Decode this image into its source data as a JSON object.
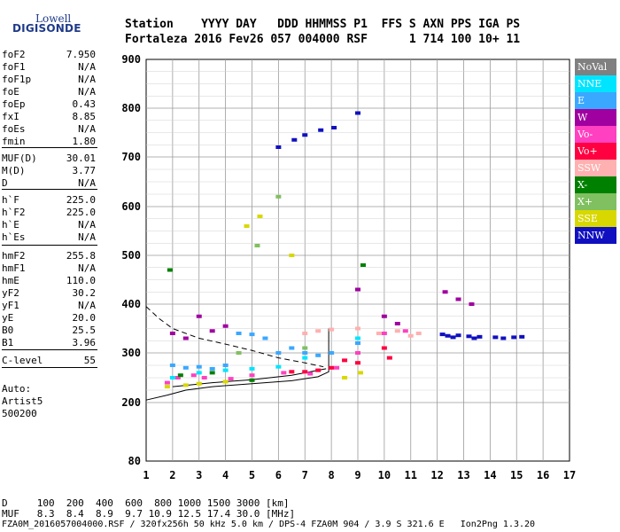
{
  "logo": {
    "line1": "Lowell",
    "line2": "DIGISONDE"
  },
  "header": {
    "line1": "Station    YYYY DAY   DDD HHMMSS P1  FFS S AXN PPS IGA PS",
    "line2": "Fortaleza 2016 Fev26 057 004000 RSF      1 714 100 10+ 11"
  },
  "params": [
    {
      "k": "foF2",
      "v": "7.950"
    },
    {
      "k": "foF1",
      "v": "N/A"
    },
    {
      "k": "foF1p",
      "v": "N/A"
    },
    {
      "k": "foE",
      "v": "N/A"
    },
    {
      "k": "foEp",
      "v": "0.43"
    },
    {
      "k": "fxI",
      "v": "8.85"
    },
    {
      "k": "foEs",
      "v": "N/A"
    },
    {
      "k": "fmin",
      "v": "1.80"
    },
    {
      "k": "MUF(D)",
      "v": "30.01"
    },
    {
      "k": "M(D)",
      "v": "3.77"
    },
    {
      "k": "D",
      "v": "N/A"
    },
    {
      "k": "h`F",
      "v": "225.0"
    },
    {
      "k": "h`F2",
      "v": "225.0"
    },
    {
      "k": "h`E",
      "v": "N/A"
    },
    {
      "k": "h`Es",
      "v": "N/A"
    },
    {
      "k": "hmF2",
      "v": "255.8"
    },
    {
      "k": "hmF1",
      "v": "N/A"
    },
    {
      "k": "hmE",
      "v": "110.0"
    },
    {
      "k": "yF2",
      "v": "30.2"
    },
    {
      "k": "yF1",
      "v": "N/A"
    },
    {
      "k": "yE",
      "v": "20.0"
    },
    {
      "k": "B0",
      "v": "25.5"
    },
    {
      "k": "B1",
      "v": "3.96"
    },
    {
      "k": "C-level",
      "v": "55"
    }
  ],
  "auto": {
    "l1": "Auto:",
    "l2": "Artist5",
    "l3": "500200"
  },
  "legend": [
    {
      "label": "NoVal",
      "color": "#808080"
    },
    {
      "label": "NNE",
      "color": "#00e5ff"
    },
    {
      "label": "E",
      "color": "#3aa8ff"
    },
    {
      "label": "W",
      "color": "#a000a0"
    },
    {
      "label": "Vo-",
      "color": "#ff40c0"
    },
    {
      "label": "Vo+",
      "color": "#ff0040"
    },
    {
      "label": "SSW",
      "color": "#ffb0b0"
    },
    {
      "label": "X-",
      "color": "#008000"
    },
    {
      "label": "X+",
      "color": "#80c060"
    },
    {
      "label": "SSE",
      "color": "#d8d800"
    },
    {
      "label": "NNW",
      "color": "#1010c0"
    }
  ],
  "footer": {
    "d_line": "D     100  200  400  600  800 1000 1500 3000 [km]",
    "muf_line": "MUF   8.3  8.4  8.9  9.7 10.9 12.5 17.4 30.0 [MHz]",
    "file_line": "FZA0M_2016057004000.RSF / 320fx256h 50 kHz 5.0 km / DPS-4 FZA0M 904 / 3.9 S 321.6 E   Ion2Png 1.3.20"
  },
  "chart_data": {
    "type": "scatter",
    "title": "",
    "xlabel": "",
    "ylabel": "",
    "xlim": [
      1,
      17
    ],
    "ylim": [
      80,
      900
    ],
    "x_ticks": [
      1,
      2,
      3,
      4,
      5,
      6,
      7,
      8,
      9,
      10,
      11,
      12,
      13,
      14,
      15,
      16,
      17
    ],
    "y_ticks": [
      80,
      200,
      300,
      400,
      500,
      600,
      700,
      800,
      900
    ],
    "grid": true,
    "series": [
      {
        "direction": "NNW",
        "color": "#1010c0",
        "points": [
          [
            12.2,
            338
          ],
          [
            12.4,
            335
          ],
          [
            12.6,
            332
          ],
          [
            12.8,
            336
          ],
          [
            13.2,
            334
          ],
          [
            13.4,
            330
          ],
          [
            13.6,
            333
          ],
          [
            14.2,
            332
          ],
          [
            14.5,
            330
          ],
          [
            14.9,
            332
          ],
          [
            15.2,
            333
          ],
          [
            6.0,
            720
          ],
          [
            6.6,
            735
          ],
          [
            7.0,
            745
          ],
          [
            7.6,
            755
          ],
          [
            8.1,
            760
          ],
          [
            9.0,
            790
          ]
        ]
      },
      {
        "direction": "E",
        "color": "#3aa8ff",
        "points": [
          [
            2.0,
            275
          ],
          [
            2.5,
            270
          ],
          [
            3.0,
            272
          ],
          [
            3.5,
            268
          ],
          [
            4.0,
            275
          ],
          [
            4.5,
            340
          ],
          [
            5.0,
            338
          ],
          [
            5.5,
            330
          ],
          [
            6.0,
            300
          ],
          [
            6.5,
            310
          ],
          [
            7.0,
            300
          ],
          [
            7.5,
            295
          ],
          [
            8.0,
            300
          ],
          [
            9.0,
            320
          ]
        ]
      },
      {
        "direction": "Vo-",
        "color": "#ff40c0",
        "points": [
          [
            1.8,
            240
          ],
          [
            2.2,
            250
          ],
          [
            2.8,
            255
          ],
          [
            3.2,
            250
          ],
          [
            4.2,
            248
          ],
          [
            5.0,
            255
          ],
          [
            6.2,
            260
          ],
          [
            7.2,
            258
          ],
          [
            8.2,
            270
          ],
          [
            9.0,
            300
          ],
          [
            10.0,
            340
          ],
          [
            10.8,
            345
          ]
        ]
      },
      {
        "direction": "Vo+",
        "color": "#ff0040",
        "points": [
          [
            6.5,
            262
          ],
          [
            7.0,
            262
          ],
          [
            7.5,
            265
          ],
          [
            8.0,
            270
          ],
          [
            8.5,
            285
          ],
          [
            9.0,
            280
          ],
          [
            10.0,
            310
          ],
          [
            10.2,
            290
          ]
        ]
      },
      {
        "direction": "SSW",
        "color": "#ffb0b0",
        "points": [
          [
            7.0,
            340
          ],
          [
            7.5,
            345
          ],
          [
            8.0,
            348
          ],
          [
            9.0,
            350
          ],
          [
            9.8,
            340
          ],
          [
            10.5,
            345
          ],
          [
            11.0,
            335
          ],
          [
            11.3,
            340
          ]
        ]
      },
      {
        "direction": "W",
        "color": "#a000a0",
        "points": [
          [
            2.0,
            340
          ],
          [
            2.5,
            330
          ],
          [
            3.0,
            375
          ],
          [
            3.5,
            345
          ],
          [
            4.0,
            355
          ],
          [
            9.0,
            430
          ],
          [
            10.0,
            375
          ],
          [
            10.5,
            360
          ],
          [
            12.3,
            425
          ],
          [
            12.8,
            410
          ],
          [
            13.3,
            400
          ]
        ]
      },
      {
        "direction": "NNE",
        "color": "#00e5ff",
        "points": [
          [
            2.0,
            250
          ],
          [
            3.0,
            260
          ],
          [
            4.0,
            265
          ],
          [
            5.0,
            268
          ],
          [
            6.0,
            272
          ],
          [
            7.0,
            290
          ],
          [
            9.0,
            330
          ]
        ]
      },
      {
        "direction": "SSE",
        "color": "#d8d800",
        "points": [
          [
            1.8,
            232
          ],
          [
            2.5,
            235
          ],
          [
            3.0,
            238
          ],
          [
            4.0,
            242
          ],
          [
            4.8,
            560
          ],
          [
            5.3,
            580
          ],
          [
            6.5,
            500
          ],
          [
            8.5,
            250
          ],
          [
            9.1,
            260
          ]
        ]
      },
      {
        "direction": "X-",
        "color": "#008000",
        "points": [
          [
            1.9,
            470
          ],
          [
            2.3,
            255
          ],
          [
            3.5,
            260
          ],
          [
            5.0,
            245
          ],
          [
            9.2,
            480
          ]
        ]
      },
      {
        "direction": "X+",
        "color": "#80c060",
        "points": [
          [
            4.5,
            300
          ],
          [
            5.2,
            520
          ],
          [
            6.0,
            620
          ],
          [
            7.0,
            310
          ]
        ]
      }
    ],
    "profile_lines": [
      {
        "style": "solid",
        "points": [
          [
            1.8,
            215
          ],
          [
            2.5,
            225
          ],
          [
            3.5,
            232
          ],
          [
            5.0,
            238
          ],
          [
            6.5,
            244
          ],
          [
            7.5,
            252
          ],
          [
            7.9,
            262
          ],
          [
            7.9,
            350
          ]
        ]
      },
      {
        "style": "solid",
        "points": [
          [
            1.0,
            205
          ],
          [
            1.8,
            215
          ]
        ]
      },
      {
        "style": "dashed",
        "points": [
          [
            1.0,
            395
          ],
          [
            1.5,
            370
          ],
          [
            2.0,
            350
          ],
          [
            3.0,
            330
          ],
          [
            4.0,
            318
          ],
          [
            5.0,
            305
          ],
          [
            6.0,
            290
          ],
          [
            7.0,
            280
          ],
          [
            7.7,
            272
          ]
        ]
      },
      {
        "style": "solid",
        "points": [
          [
            2.0,
            232
          ],
          [
            3.5,
            240
          ],
          [
            5.0,
            246
          ],
          [
            6.5,
            255
          ],
          [
            7.8,
            268
          ]
        ]
      }
    ]
  }
}
